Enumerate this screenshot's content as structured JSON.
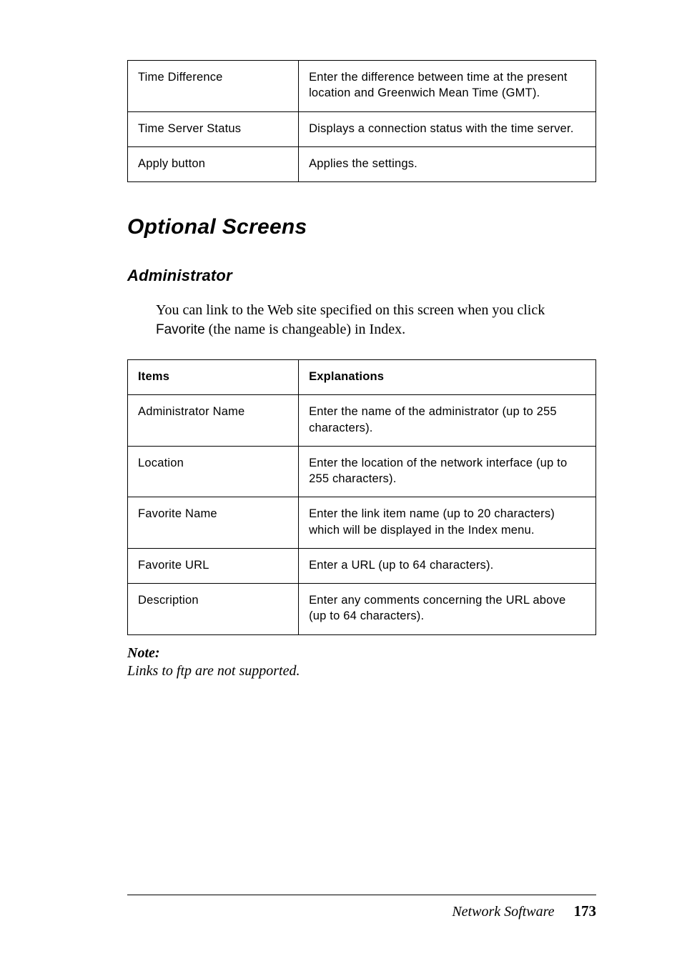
{
  "table1": {
    "rows": [
      {
        "item": "Time Difference",
        "desc": "Enter the difference between time at the present location and Greenwich Mean Time (GMT)."
      },
      {
        "item": "Time Server Status",
        "desc": "Displays a connection status with the time server."
      },
      {
        "item": "Apply button",
        "desc": "Applies the settings."
      }
    ]
  },
  "heading_optional": "Optional Screens",
  "heading_admin": "Administrator",
  "intro_para_pre": "You can link to the Web site specified on this screen when you click ",
  "intro_para_term": "Favorite",
  "intro_para_post": " (the name is changeable) in Index.",
  "table2": {
    "header": {
      "items": "Items",
      "explanations": "Explanations"
    },
    "rows": [
      {
        "item": "Administrator Name",
        "desc": "Enter the name of the administrator (up to 255 characters)."
      },
      {
        "item": "Location",
        "desc": "Enter the location of the network interface (up to 255 characters)."
      },
      {
        "item": "Favorite Name",
        "desc": "Enter the link item name (up to 20 characters) which will be displayed in the Index menu."
      },
      {
        "item": "Favorite URL",
        "desc": "Enter a URL (up to 64 characters)."
      },
      {
        "item": "Description",
        "desc": "Enter any comments concerning the URL above (up to 64 characters)."
      }
    ]
  },
  "note_label": "Note:",
  "note_body": "Links to ftp are not supported.",
  "footer_text": "Network Software",
  "footer_page": "173"
}
